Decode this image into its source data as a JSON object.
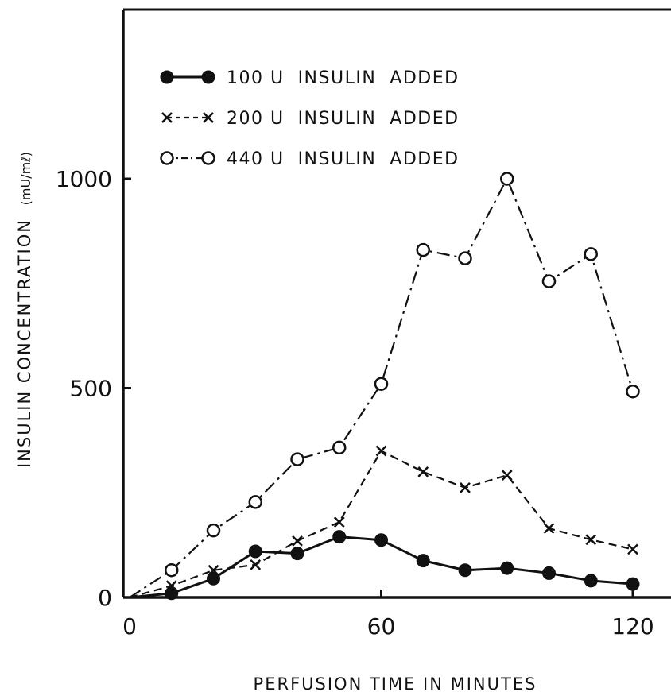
{
  "chart_data": {
    "type": "line",
    "title": "",
    "xlabel": "PERFUSION TIME IN MINUTES",
    "ylabel": "INSULIN CONCENTRATION",
    "ylabel_unit": "(mU/mℓ)",
    "xlim": [
      0,
      125
    ],
    "ylim": [
      0,
      1000
    ],
    "xticks": [
      0,
      60,
      120
    ],
    "yticks": [
      0,
      500,
      1000
    ],
    "xtick_labels": [
      "0",
      "60",
      "120"
    ],
    "ytick_labels": [
      "0",
      "500",
      "1000"
    ],
    "grid": false,
    "legend_position": "top-left",
    "series": [
      {
        "name": "100 U  INSULIN  ADDED",
        "marker": "filled-circle",
        "line": "solid",
        "x": [
          0,
          10,
          20,
          30,
          40,
          50,
          60,
          70,
          80,
          90,
          100,
          110,
          120
        ],
        "y": [
          0,
          10,
          45,
          110,
          105,
          145,
          137,
          88,
          65,
          70,
          58,
          40,
          32
        ]
      },
      {
        "name": "200 U  INSULIN  ADDED",
        "marker": "x",
        "line": "dashed",
        "x": [
          0,
          10,
          20,
          30,
          40,
          50,
          60,
          70,
          80,
          90,
          100,
          110,
          120
        ],
        "y": [
          0,
          28,
          65,
          78,
          135,
          180,
          350,
          300,
          262,
          292,
          165,
          138,
          115
        ]
      },
      {
        "name": "440 U  INSULIN  ADDED",
        "marker": "open-circle",
        "line": "dash-dot",
        "x": [
          0,
          10,
          20,
          30,
          40,
          50,
          60,
          70,
          80,
          90,
          100,
          110,
          120
        ],
        "y": [
          0,
          65,
          160,
          228,
          330,
          358,
          510,
          830,
          810,
          1000,
          755,
          820,
          492
        ]
      }
    ]
  }
}
